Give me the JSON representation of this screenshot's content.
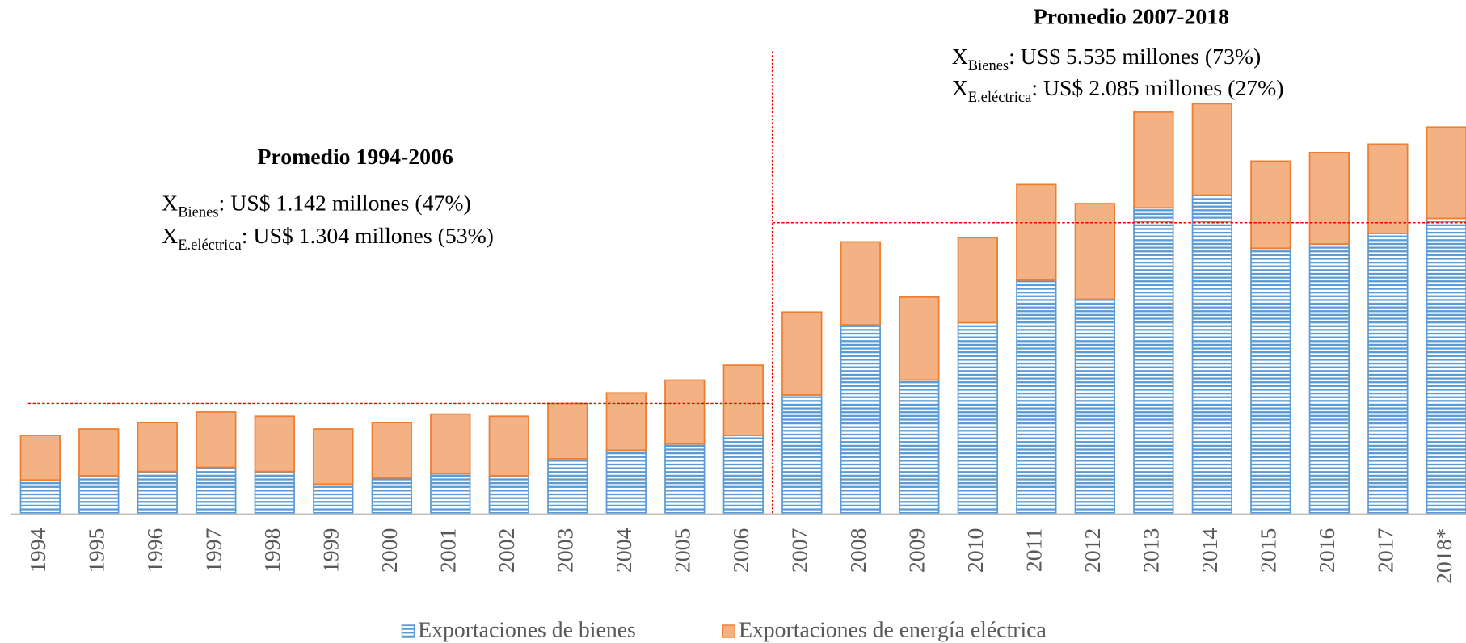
{
  "chart_data": {
    "type": "stacked_bar",
    "categories": [
      "1994",
      "1995",
      "1996",
      "1997",
      "1998",
      "1999",
      "2000",
      "2001",
      "2002",
      "2003",
      "2004",
      "2005",
      "2006",
      "2007",
      "2008",
      "2009",
      "2010",
      "2011",
      "2012",
      "2013",
      "2014",
      "2015",
      "2016",
      "2017",
      "2018*"
    ],
    "series": [
      {
        "name": "Exportaciones de bienes",
        "color": "#5b9bd5",
        "values": [
          800,
          900,
          1000,
          1100,
          1000,
          700,
          850,
          950,
          900,
          1300,
          1500,
          1650,
          1850,
          2800,
          4450,
          3150,
          4500,
          5500,
          5050,
          7200,
          7500,
          6250,
          6350,
          6600,
          6950
        ]
      },
      {
        "name": "Exportaciones de energía eléctrica",
        "color": "#ed7d31",
        "values": [
          1050,
          1100,
          1150,
          1300,
          1300,
          1300,
          1300,
          1400,
          1400,
          1300,
          1350,
          1500,
          1650,
          1950,
          1950,
          1950,
          2000,
          2250,
          2250,
          2250,
          2150,
          2050,
          2150,
          2100,
          2150
        ]
      }
    ],
    "ylim": [
      0,
      10000
    ],
    "reference_lines": [
      {
        "value": 2600,
        "from": 0,
        "to": 12
      },
      {
        "value": 6850,
        "from": 13,
        "to": 24
      }
    ],
    "annotations": [
      {
        "title": "Promedio 1994-2006",
        "lines": [
          {
            "prefix": "X",
            "sub": "Bienes",
            "text": ": US$ 1.142 millones (47%)"
          },
          {
            "prefix": "X",
            "sub": "E.eléctrica",
            "text": ": US$ 1.304 millones (53%)"
          }
        ]
      },
      {
        "title": "Promedio 2007-2018",
        "lines": [
          {
            "prefix": "X",
            "sub": "Bienes",
            "text": ": US$ 5.535 millones (73%)"
          },
          {
            "prefix": "X",
            "sub": "E.eléctrica",
            "text": ": US$ 2.085 millones (27%)"
          }
        ]
      }
    ]
  }
}
